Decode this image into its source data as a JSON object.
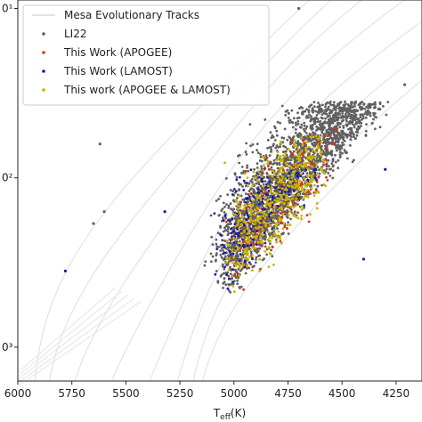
{
  "chart_data": {
    "type": "scatter",
    "title": "",
    "xlabel": "T_eff(K)",
    "xlabel_main": "T",
    "xlabel_sub": "eff",
    "xlabel_unit": "(K)",
    "ylabel": "",
    "x_reversed": true,
    "xlim": [
      6000,
      4130
    ],
    "ylim_log10": [
      -1.2,
      1.05
    ],
    "y_scale": "log",
    "x_ticks": [
      6000,
      5750,
      5500,
      5250,
      5000,
      4750,
      4500,
      4250
    ],
    "x_tick_labels": [
      "6000",
      "5750",
      "5500",
      "5250",
      "5000",
      "4750",
      "4500",
      "4250"
    ],
    "y_ticks_log10": [
      1,
      0,
      -1
    ],
    "y_tick_labels": [
      "0¹",
      "0²",
      "0³"
    ],
    "legend_position": "top-left",
    "series": [
      {
        "name": "Mesa Evolutionary Tracks",
        "kind": "line",
        "color": "#dddddd"
      },
      {
        "name": "LI22",
        "kind": "scatter",
        "color": "#606060",
        "cluster": {
          "x_range": [
            4300,
            5050
          ],
          "y_range_log10": [
            -0.75,
            0.45
          ],
          "count": 2400
        },
        "outliers": [
          [
            5600,
            -0.2
          ],
          [
            5650,
            -0.27
          ],
          [
            4210,
            0.55
          ],
          [
            5620,
            0.2
          ],
          [
            4700,
            1.0
          ]
        ]
      },
      {
        "name": "This Work (APOGEE)",
        "kind": "scatter",
        "color": "#e03020",
        "cluster": {
          "x_range": [
            4550,
            5000
          ],
          "y_range_log10": [
            -0.72,
            0.3
          ],
          "count": 180
        }
      },
      {
        "name": "This Work (LAMOST)",
        "kind": "scatter",
        "color": "#1a1aa6",
        "cluster": {
          "x_range": [
            4400,
            5050
          ],
          "y_range_log10": [
            -0.72,
            0.05
          ],
          "count": 240
        },
        "outliers": [
          [
            5780,
            -0.55
          ],
          [
            5320,
            -0.2
          ],
          [
            4300,
            0.05
          ],
          [
            4400,
            -0.48
          ]
        ]
      },
      {
        "name": "This work (APOGEE & LAMOST)",
        "kind": "scatter",
        "color": "#c8b400",
        "cluster": {
          "x_range": [
            4600,
            5000
          ],
          "y_range_log10": [
            -0.72,
            0.25
          ],
          "count": 500
        }
      }
    ]
  }
}
